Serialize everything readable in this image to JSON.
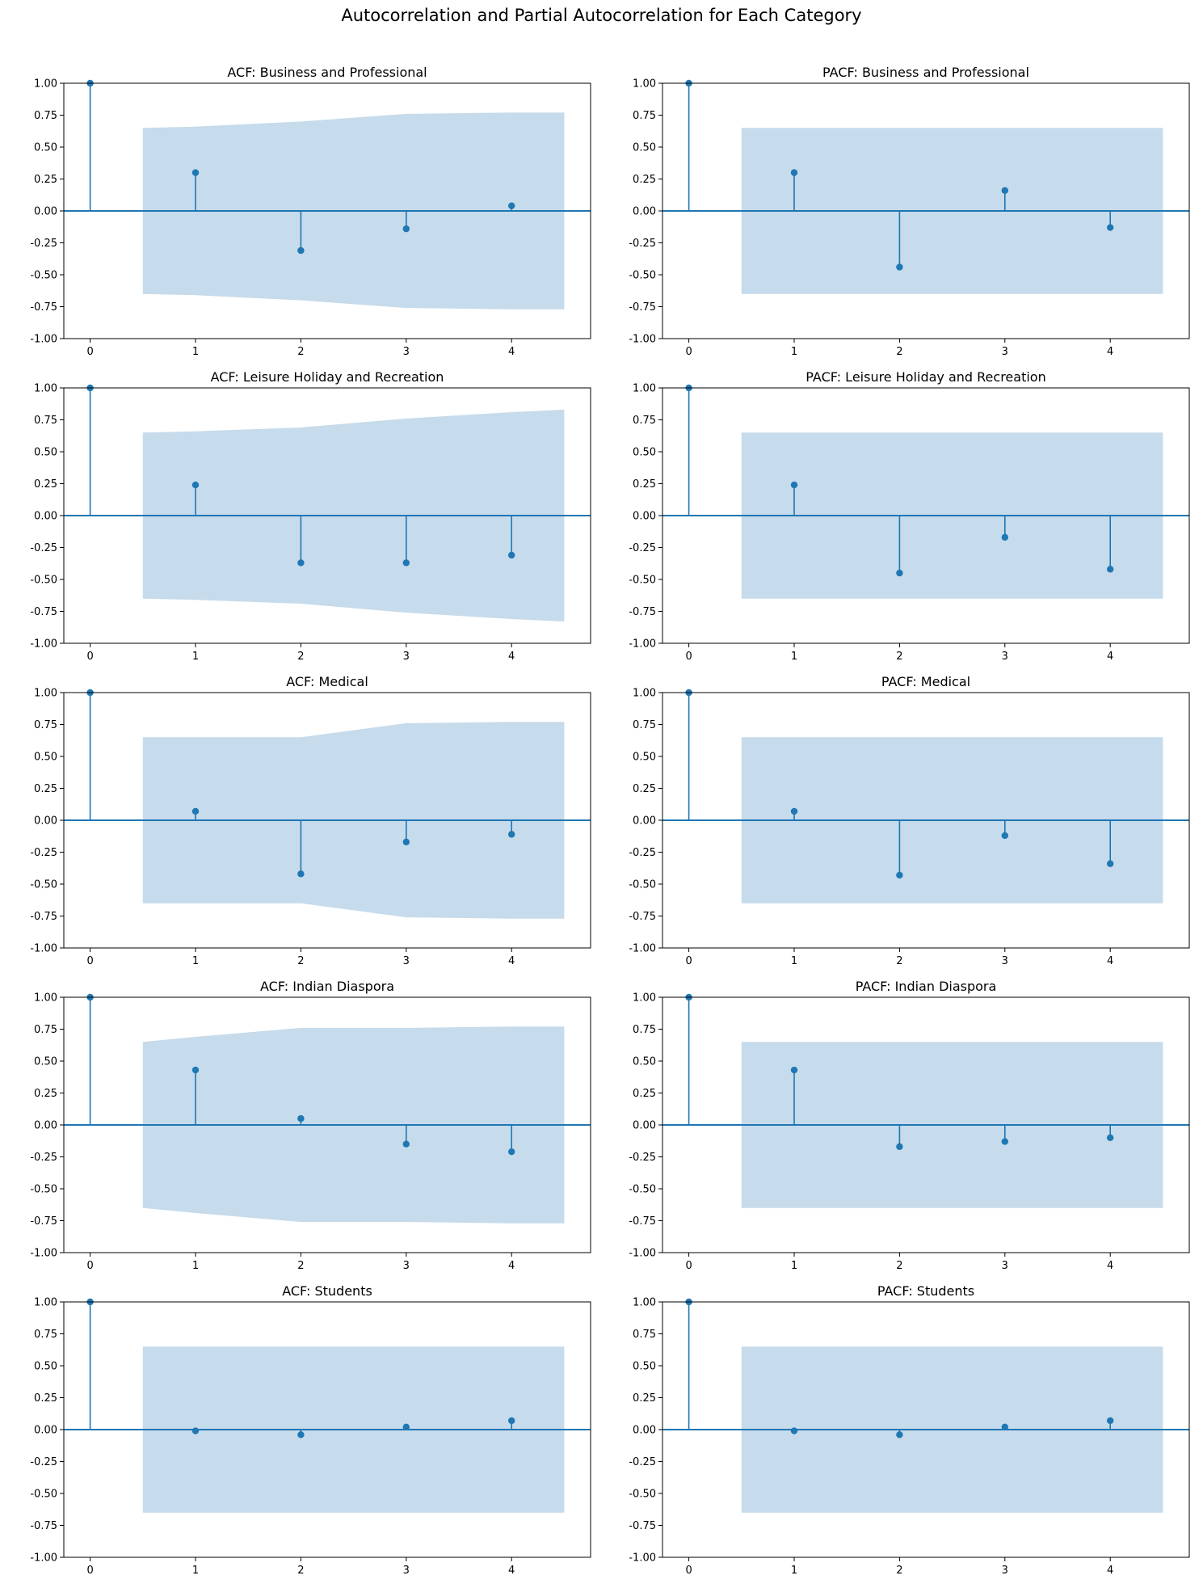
{
  "figure": {
    "title": "Autocorrelation and Partial Autocorrelation for Each Category"
  },
  "colors": {
    "stem": "#1f77b4",
    "band": "#c6dbeb",
    "axis": "#000000",
    "background": "#ffffff"
  },
  "chart_data": [
    {
      "type": "stem",
      "title": "ACF: Business and Professional",
      "lags": [
        0,
        1,
        2,
        3,
        4
      ],
      "values": [
        1.0,
        0.3,
        -0.31,
        -0.14,
        0.04
      ],
      "confidence_upper": [
        0.65,
        0.66,
        0.7,
        0.76,
        0.77,
        0.77
      ],
      "confidence_x": [
        0.5,
        1,
        2,
        3,
        4,
        4.5
      ],
      "xticks": [
        "0",
        "1",
        "2",
        "3",
        "4"
      ],
      "yticks": [
        "-1.00",
        "-0.75",
        "-0.50",
        "-0.25",
        "0.00",
        "0.25",
        "0.50",
        "0.75",
        "1.00"
      ],
      "ylim": [
        -1,
        1
      ],
      "xlim": [
        -0.25,
        4.75
      ]
    },
    {
      "type": "stem",
      "title": "PACF: Business and Professional",
      "lags": [
        0,
        1,
        2,
        3,
        4
      ],
      "values": [
        1.0,
        0.3,
        -0.44,
        0.16,
        -0.13
      ],
      "confidence_upper": [
        0.65,
        0.65,
        0.65,
        0.65,
        0.65,
        0.65
      ],
      "confidence_x": [
        0.5,
        1,
        2,
        3,
        4,
        4.5
      ],
      "xticks": [
        "0",
        "1",
        "2",
        "3",
        "4"
      ],
      "yticks": [
        "-1.00",
        "-0.75",
        "-0.50",
        "-0.25",
        "0.00",
        "0.25",
        "0.50",
        "0.75",
        "1.00"
      ],
      "ylim": [
        -1,
        1
      ],
      "xlim": [
        -0.25,
        4.75
      ]
    },
    {
      "type": "stem",
      "title": "ACF: Leisure Holiday and Recreation",
      "lags": [
        0,
        1,
        2,
        3,
        4
      ],
      "values": [
        1.0,
        0.24,
        -0.37,
        -0.37,
        -0.31
      ],
      "confidence_upper": [
        0.65,
        0.66,
        0.69,
        0.76,
        0.81,
        0.83
      ],
      "confidence_x": [
        0.5,
        1,
        2,
        3,
        4,
        4.5
      ],
      "xticks": [
        "0",
        "1",
        "2",
        "3",
        "4"
      ],
      "yticks": [
        "-1.00",
        "-0.75",
        "-0.50",
        "-0.25",
        "0.00",
        "0.25",
        "0.50",
        "0.75",
        "1.00"
      ],
      "ylim": [
        -1,
        1
      ],
      "xlim": [
        -0.25,
        4.75
      ]
    },
    {
      "type": "stem",
      "title": "PACF: Leisure Holiday and Recreation",
      "lags": [
        0,
        1,
        2,
        3,
        4
      ],
      "values": [
        1.0,
        0.24,
        -0.45,
        -0.17,
        -0.42
      ],
      "confidence_upper": [
        0.65,
        0.65,
        0.65,
        0.65,
        0.65,
        0.65
      ],
      "confidence_x": [
        0.5,
        1,
        2,
        3,
        4,
        4.5
      ],
      "xticks": [
        "0",
        "1",
        "2",
        "3",
        "4"
      ],
      "yticks": [
        "-1.00",
        "-0.75",
        "-0.50",
        "-0.25",
        "0.00",
        "0.25",
        "0.50",
        "0.75",
        "1.00"
      ],
      "ylim": [
        -1,
        1
      ],
      "xlim": [
        -0.25,
        4.75
      ]
    },
    {
      "type": "stem",
      "title": "ACF: Medical",
      "lags": [
        0,
        1,
        2,
        3,
        4
      ],
      "values": [
        1.0,
        0.07,
        -0.42,
        -0.17,
        -0.11
      ],
      "confidence_upper": [
        0.65,
        0.65,
        0.65,
        0.76,
        0.77,
        0.77
      ],
      "confidence_x": [
        0.5,
        1,
        2,
        3,
        4,
        4.5
      ],
      "xticks": [
        "0",
        "1",
        "2",
        "3",
        "4"
      ],
      "yticks": [
        "-1.00",
        "-0.75",
        "-0.50",
        "-0.25",
        "0.00",
        "0.25",
        "0.50",
        "0.75",
        "1.00"
      ],
      "ylim": [
        -1,
        1
      ],
      "xlim": [
        -0.25,
        4.75
      ]
    },
    {
      "type": "stem",
      "title": "PACF: Medical",
      "lags": [
        0,
        1,
        2,
        3,
        4
      ],
      "values": [
        1.0,
        0.07,
        -0.43,
        -0.12,
        -0.34
      ],
      "confidence_upper": [
        0.65,
        0.65,
        0.65,
        0.65,
        0.65,
        0.65
      ],
      "confidence_x": [
        0.5,
        1,
        2,
        3,
        4,
        4.5
      ],
      "xticks": [
        "0",
        "1",
        "2",
        "3",
        "4"
      ],
      "yticks": [
        "-1.00",
        "-0.75",
        "-0.50",
        "-0.25",
        "0.00",
        "0.25",
        "0.50",
        "0.75",
        "1.00"
      ],
      "ylim": [
        -1,
        1
      ],
      "xlim": [
        -0.25,
        4.75
      ]
    },
    {
      "type": "stem",
      "title": "ACF: Indian Diaspora",
      "lags": [
        0,
        1,
        2,
        3,
        4
      ],
      "values": [
        1.0,
        0.43,
        0.05,
        -0.15,
        -0.21
      ],
      "confidence_upper": [
        0.65,
        0.69,
        0.76,
        0.76,
        0.77,
        0.77
      ],
      "confidence_x": [
        0.5,
        1,
        2,
        3,
        4,
        4.5
      ],
      "xticks": [
        "0",
        "1",
        "2",
        "3",
        "4"
      ],
      "yticks": [
        "-1.00",
        "-0.75",
        "-0.50",
        "-0.25",
        "0.00",
        "0.25",
        "0.50",
        "0.75",
        "1.00"
      ],
      "ylim": [
        -1,
        1
      ],
      "xlim": [
        -0.25,
        4.75
      ]
    },
    {
      "type": "stem",
      "title": "PACF: Indian Diaspora",
      "lags": [
        0,
        1,
        2,
        3,
        4
      ],
      "values": [
        1.0,
        0.43,
        -0.17,
        -0.13,
        -0.1
      ],
      "confidence_upper": [
        0.65,
        0.65,
        0.65,
        0.65,
        0.65,
        0.65
      ],
      "confidence_x": [
        0.5,
        1,
        2,
        3,
        4,
        4.5
      ],
      "xticks": [
        "0",
        "1",
        "2",
        "3",
        "4"
      ],
      "yticks": [
        "-1.00",
        "-0.75",
        "-0.50",
        "-0.25",
        "0.00",
        "0.25",
        "0.50",
        "0.75",
        "1.00"
      ],
      "ylim": [
        -1,
        1
      ],
      "xlim": [
        -0.25,
        4.75
      ]
    },
    {
      "type": "stem",
      "title": "ACF: Students",
      "lags": [
        0,
        1,
        2,
        3,
        4
      ],
      "values": [
        1.0,
        -0.01,
        -0.04,
        0.02,
        0.07
      ],
      "confidence_upper": [
        0.65,
        0.65,
        0.65,
        0.65,
        0.65,
        0.65
      ],
      "confidence_x": [
        0.5,
        1,
        2,
        3,
        4,
        4.5
      ],
      "xticks": [
        "0",
        "1",
        "2",
        "3",
        "4"
      ],
      "yticks": [
        "-1.00",
        "-0.75",
        "-0.50",
        "-0.25",
        "0.00",
        "0.25",
        "0.50",
        "0.75",
        "1.00"
      ],
      "ylim": [
        -1,
        1
      ],
      "xlim": [
        -0.25,
        4.75
      ]
    },
    {
      "type": "stem",
      "title": "PACF: Students",
      "lags": [
        0,
        1,
        2,
        3,
        4
      ],
      "values": [
        1.0,
        -0.01,
        -0.04,
        0.02,
        0.07
      ],
      "confidence_upper": [
        0.65,
        0.65,
        0.65,
        0.65,
        0.65,
        0.65
      ],
      "confidence_x": [
        0.5,
        1,
        2,
        3,
        4,
        4.5
      ],
      "xticks": [
        "0",
        "1",
        "2",
        "3",
        "4"
      ],
      "yticks": [
        "-1.00",
        "-0.75",
        "-0.50",
        "-0.25",
        "0.00",
        "0.25",
        "0.50",
        "0.75",
        "1.00"
      ],
      "ylim": [
        -1,
        1
      ],
      "xlim": [
        -0.25,
        4.75
      ]
    }
  ]
}
